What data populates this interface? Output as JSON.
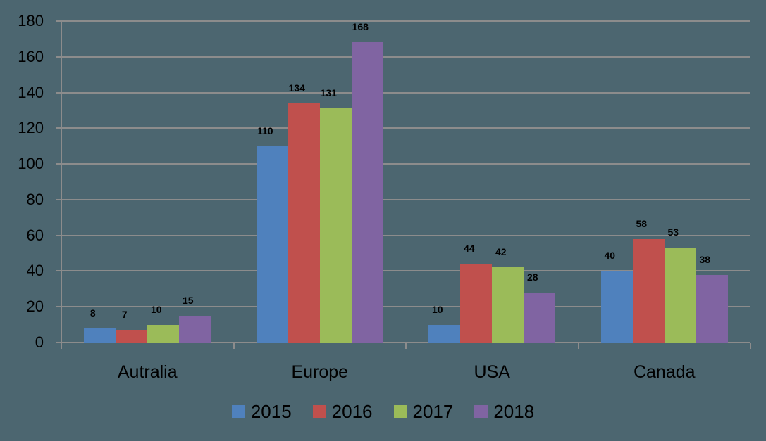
{
  "chart_data": {
    "type": "bar",
    "title": "",
    "xlabel": "",
    "ylabel": "",
    "categories": [
      "Autralia",
      "Europe",
      "USA",
      "Canada"
    ],
    "series": [
      {
        "name": "2015",
        "color": "#4f81bd",
        "values": [
          8,
          110,
          10,
          40
        ]
      },
      {
        "name": "2016",
        "color": "#c0504d",
        "values": [
          7,
          134,
          44,
          58
        ]
      },
      {
        "name": "2017",
        "color": "#9bbb59",
        "values": [
          10,
          131,
          42,
          53
        ]
      },
      {
        "name": "2018",
        "color": "#8064a2",
        "values": [
          15,
          168,
          28,
          38
        ]
      }
    ],
    "ylim": [
      0,
      180
    ],
    "yticks": [
      0,
      20,
      40,
      60,
      80,
      100,
      120,
      140,
      160,
      180
    ],
    "grid": true,
    "legend_position": "bottom",
    "data_labels": true
  },
  "colors": {
    "background": "#4c6670",
    "gridline": "#8c8c8c"
  }
}
